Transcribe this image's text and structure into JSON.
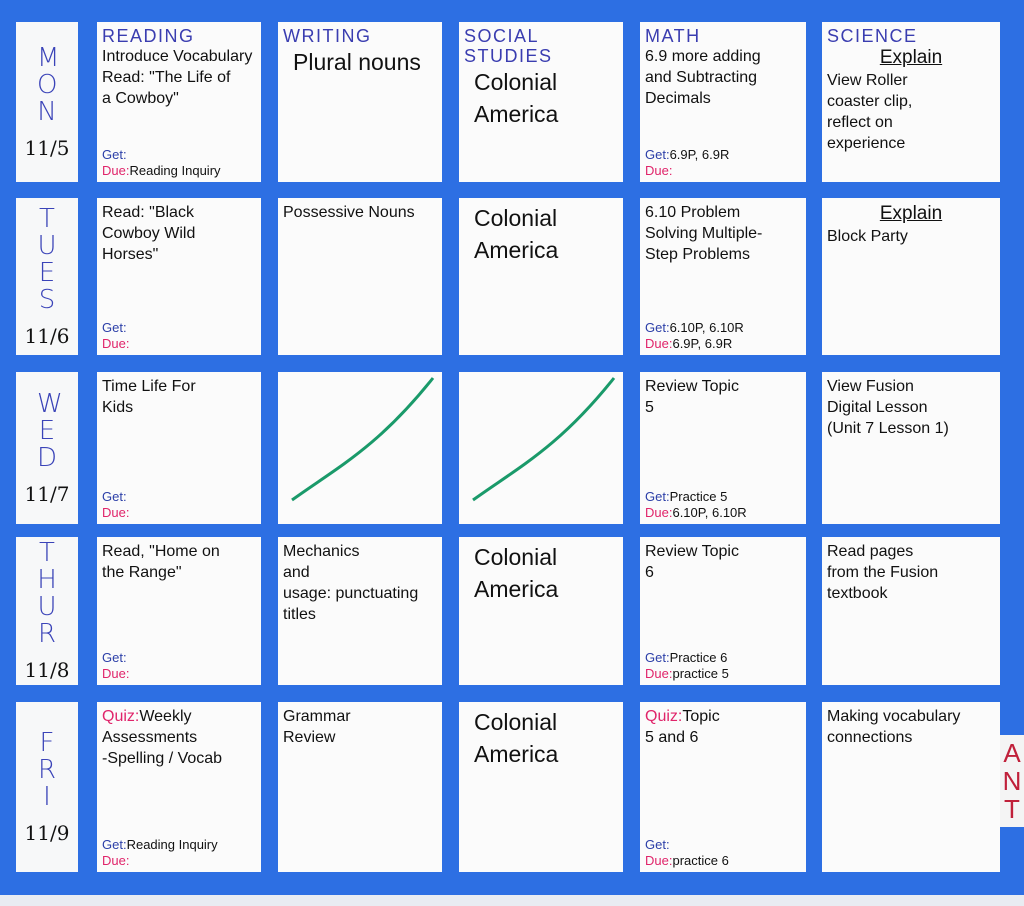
{
  "board_color": "#2d6fe3",
  "days": [
    {
      "label": "MON",
      "date": "11/5"
    },
    {
      "label": "TUES",
      "date": "11/6"
    },
    {
      "label": "WED",
      "date": "11/7"
    },
    {
      "label": "THUR",
      "date": "11/8"
    },
    {
      "label": "FRI",
      "date": "11/9"
    }
  ],
  "subjects": [
    "READING",
    "WRITING",
    "SOCIAL STUDIES",
    "MATH",
    "SCIENCE"
  ],
  "get_label": "Get:",
  "due_label": "Due:",
  "cells": [
    [
      {
        "text": "Introduce Vocabulary\nRead: \"The Life of\na Cowboy\"",
        "get": "",
        "due": "Reading Inquiry",
        "footer": true
      },
      {
        "text": "Plural nouns",
        "big": true
      },
      {
        "text": "Colonial\nAmerica",
        "big": true
      },
      {
        "text": "6.9 more adding\nand Subtracting\nDecimals",
        "get": "6.9P, 6.9R",
        "due": "",
        "footer": true
      },
      {
        "heading": "Explain",
        "text": "View Roller\ncoaster clip,\nreflect on\nexperience"
      }
    ],
    [
      {
        "text": "Read: \"Black\nCowboy Wild\nHorses\"",
        "get": "",
        "due": "",
        "footer": true
      },
      {
        "text": "Possessive Nouns"
      },
      {
        "text": "Colonial\nAmerica",
        "big": true
      },
      {
        "text": "6.10 Problem\nSolving Multiple-\nStep Problems",
        "get": "6.10P, 6.10R",
        "due": "6.9P, 6.9R",
        "footer": true
      },
      {
        "heading": "Explain",
        "text": "Block Party"
      }
    ],
    [
      {
        "text": "Time Life For\n       Kids",
        "get": "",
        "due": "",
        "footer": true
      },
      {
        "crossed": true
      },
      {
        "crossed": true
      },
      {
        "text": "Review Topic\n        5",
        "get": "Practice 5",
        "due": "6.10P, 6.10R",
        "footer": true
      },
      {
        "text": "View Fusion\nDigital Lesson\n(Unit 7 Lesson 1)"
      }
    ],
    [
      {
        "text": "Read, \"Home on\nthe Range\"",
        "get": "",
        "due": "",
        "footer": true
      },
      {
        "text": "Mechanics\n     and\nusage: punctuating\ntitles"
      },
      {
        "text": "Colonial\nAmerica",
        "big": true
      },
      {
        "text": "Review Topic\n        6",
        "get": "Practice 6",
        "due": "practice 5",
        "footer": true
      },
      {
        "text": "Read pages\nfrom the Fusion\ntextbook"
      }
    ],
    [
      {
        "quiz": "Quiz:",
        "text": "Weekly\nAssessments\n-Spelling / Vocab",
        "get": "Reading Inquiry",
        "due": "",
        "footer": true
      },
      {
        "text": "Grammar\nReview"
      },
      {
        "text": "Colonial\nAmerica",
        "big": true
      },
      {
        "quiz": "Quiz:",
        "text": "Topic\n   5 and 6",
        "get": "",
        "due": "practice 6",
        "footer": true
      },
      {
        "text": "Making vocabulary\nconnections"
      }
    ]
  ],
  "side_letters": "ANT",
  "line_color": "#1a9a6a"
}
